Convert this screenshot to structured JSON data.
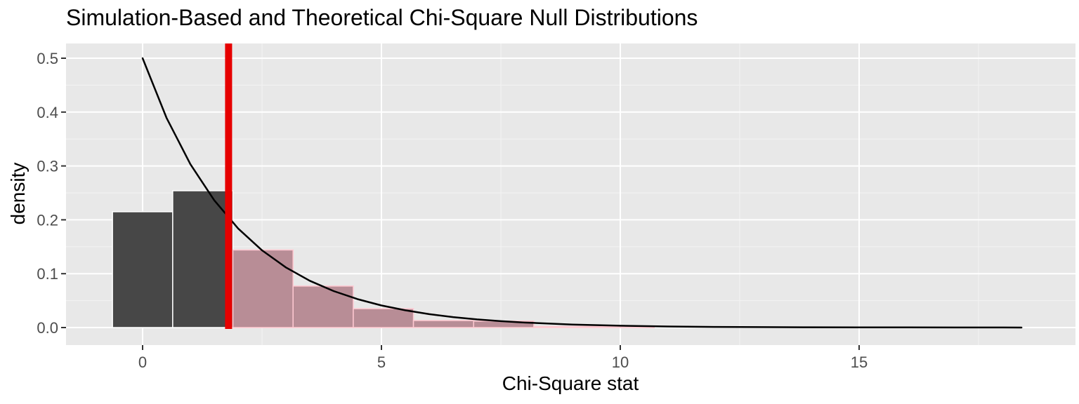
{
  "chart_data": {
    "type": "bar",
    "subtype": "histogram-with-theoretical-curve",
    "title": "Simulation-Based and Theoretical Chi-Square Null Distributions",
    "xlabel": "Chi-Square stat",
    "ylabel": "density",
    "x_tick_labels": [
      "0",
      "5",
      "10",
      "15"
    ],
    "x_tick_values": [
      0,
      5,
      10,
      15
    ],
    "x_minor_values": [
      2.5,
      7.5,
      12.5,
      17.5
    ],
    "y_tick_labels": [
      "0.0",
      "0.1",
      "0.2",
      "0.3",
      "0.4",
      "0.5"
    ],
    "y_tick_values": [
      0,
      0.1,
      0.2,
      0.3,
      0.4,
      0.5
    ],
    "y_minor_values": [
      0.05,
      0.15,
      0.25,
      0.35,
      0.45
    ],
    "xlim": [
      -1.6,
      19.45
    ],
    "ylim": [
      -0.033,
      0.527
    ],
    "grid": "major-and-minor, white on gray panel",
    "legend_position": "none",
    "histogram": {
      "name": "simulation-based null distribution",
      "binwidth": 1.26,
      "bars": [
        {
          "from": -0.63,
          "to": 0.63,
          "density": 0.215,
          "region": "null"
        },
        {
          "from": 0.63,
          "to": 1.89,
          "density": 0.254,
          "region": "null"
        },
        {
          "from": 1.89,
          "to": 3.15,
          "density": 0.144,
          "region": "p-value"
        },
        {
          "from": 3.15,
          "to": 4.41,
          "density": 0.077,
          "region": "p-value"
        },
        {
          "from": 4.41,
          "to": 5.67,
          "density": 0.035,
          "region": "p-value"
        },
        {
          "from": 5.67,
          "to": 6.93,
          "density": 0.013,
          "region": "p-value"
        },
        {
          "from": 6.93,
          "to": 8.19,
          "density": 0.012,
          "region": "p-value"
        },
        {
          "from": 8.19,
          "to": 9.45,
          "density": 0.002,
          "region": "p-value"
        },
        {
          "from": 9.45,
          "to": 10.71,
          "density": 0.002,
          "region": "p-value"
        }
      ]
    },
    "curve": {
      "name": "theoretical chi-square density, df = 2",
      "points": [
        [
          0,
          0.5
        ],
        [
          0.5,
          0.3894
        ],
        [
          1,
          0.3033
        ],
        [
          1.5,
          0.2362
        ],
        [
          2,
          0.1839
        ],
        [
          2.5,
          0.1433
        ],
        [
          3,
          0.1116
        ],
        [
          3.5,
          0.0869
        ],
        [
          4,
          0.0677
        ],
        [
          4.5,
          0.0527
        ],
        [
          5,
          0.041
        ],
        [
          5.5,
          0.032
        ],
        [
          6,
          0.0249
        ],
        [
          6.5,
          0.0194
        ],
        [
          7,
          0.0151
        ],
        [
          7.5,
          0.0118
        ],
        [
          8,
          0.0092
        ],
        [
          9,
          0.0056
        ],
        [
          10,
          0.0034
        ],
        [
          11,
          0.002
        ],
        [
          12,
          0.0012
        ],
        [
          13,
          0.0008
        ],
        [
          14,
          0.0005
        ],
        [
          15,
          0.0003
        ],
        [
          16,
          0.0002
        ],
        [
          17,
          0.0001
        ],
        [
          18,
          0.0001
        ],
        [
          18.4,
          0.0
        ]
      ]
    },
    "observed_stat_line": {
      "x": 1.8
    }
  },
  "colors": {
    "figure_background": "#FFFFFF",
    "panel_background": "#E8E8E8",
    "grid_major": "#FFFFFF",
    "grid_minor": "#F3F3F3",
    "null_bar_fill": "#474747",
    "null_bar_border": "#FFFFFF",
    "pvalue_bar_fill": "#B88D96",
    "pvalue_bar_border": "#FFC9D1",
    "curve": "#000000",
    "observed_line": "#E60000",
    "tick_mark": "#333333",
    "tick_text": "#4D4D4D",
    "title_text": "#000000"
  }
}
